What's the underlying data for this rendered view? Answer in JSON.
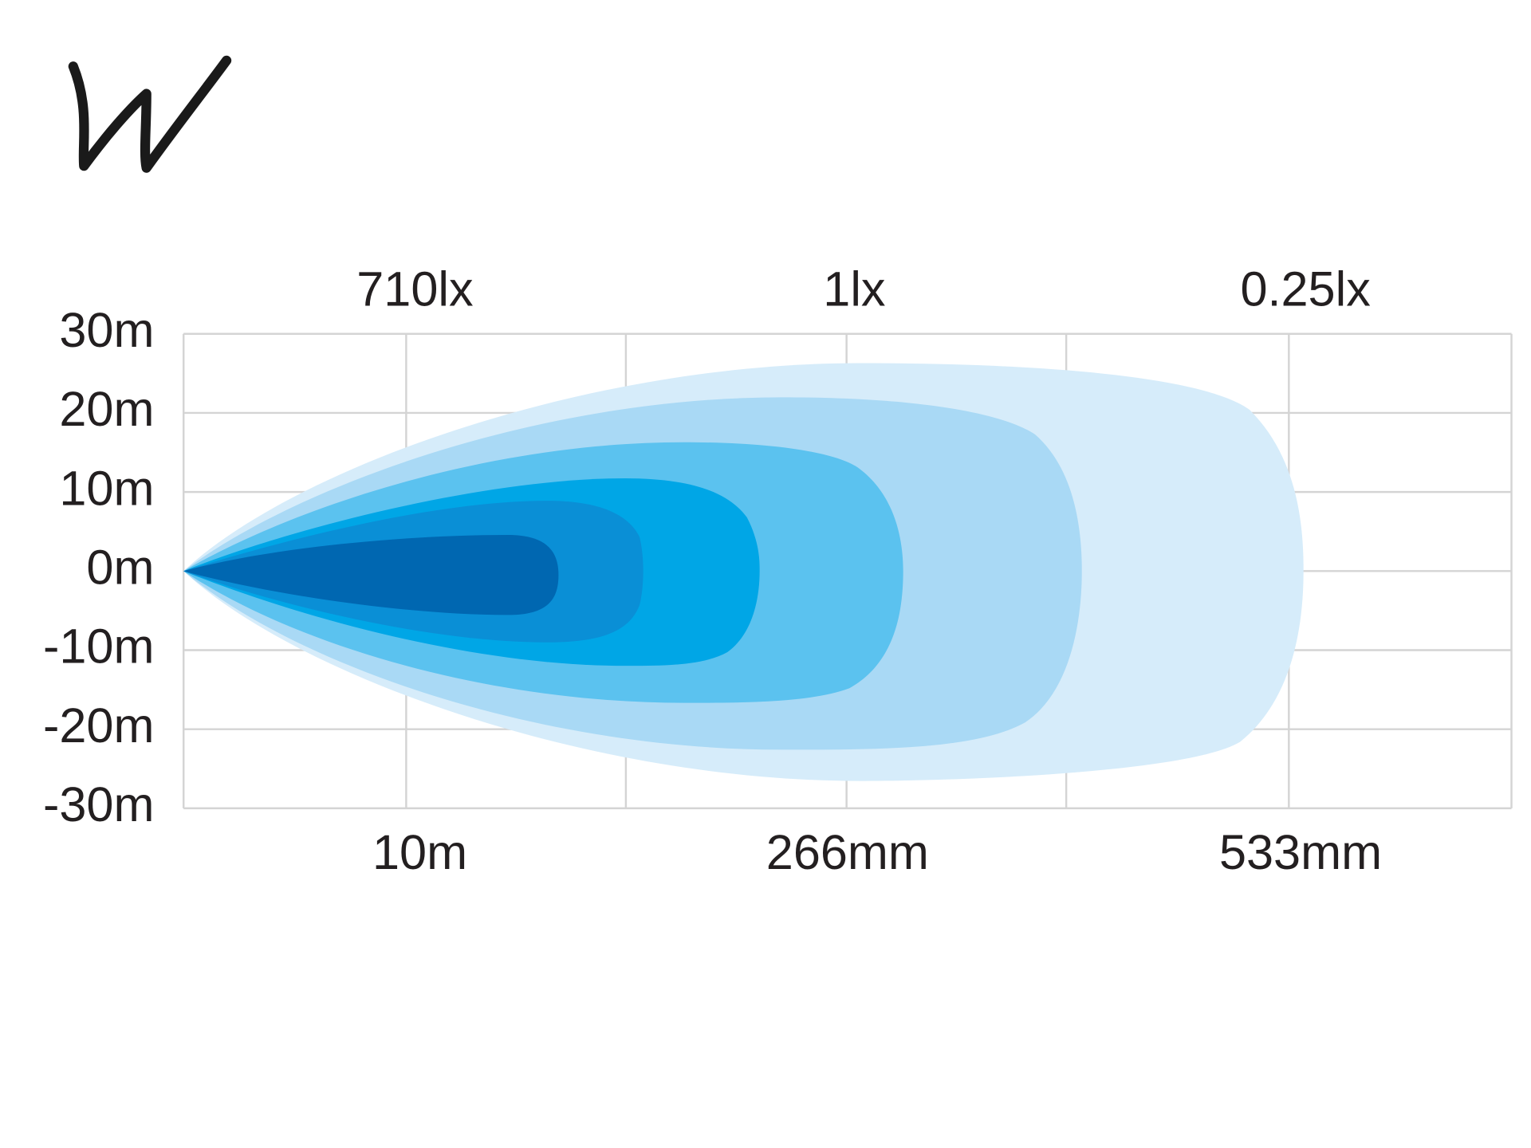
{
  "diagram": {
    "y_labels": [
      "30m",
      "20m",
      "10m",
      "0m",
      "-10m",
      "-20m",
      "-30m"
    ],
    "top_labels": [
      "710lx",
      "1lx",
      "0.25lx"
    ],
    "bottom_labels": [
      "10m",
      "266mm",
      "533mm"
    ]
  }
}
